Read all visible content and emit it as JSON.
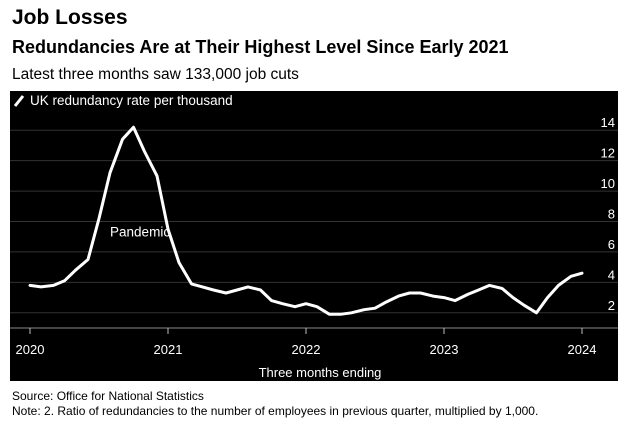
{
  "header": {
    "kicker": "Job Losses",
    "headline": "Redundancies Are at Their Highest Level Since Early 2021",
    "subhead": "Latest three months saw 133,000 job cuts"
  },
  "chart_data": {
    "type": "line",
    "title": "Redundancies Are at Their Highest Level Since Early 2021",
    "xlabel": "Three months ending",
    "ylabel": "",
    "ylim": [
      1,
      15
    ],
    "xlim": [
      2020.0,
      2024.2
    ],
    "y_ticks": [
      2,
      4,
      6,
      8,
      10,
      12,
      14
    ],
    "y_tick_labels": [
      "2",
      "4",
      "6",
      "8",
      "10",
      "12",
      "14"
    ],
    "x_ticks": [
      2020,
      2021,
      2022,
      2023,
      2024
    ],
    "x_tick_labels": [
      "2020",
      "2021",
      "2022",
      "2023",
      "2024"
    ],
    "legend": "UK redundancy rate per thousand",
    "annotation": {
      "text": "Pandemic",
      "x": 2020.58,
      "y": 7.0
    },
    "grid": true,
    "colors": {
      "background": "#000000",
      "line": "#ffffff",
      "grid": "#333333",
      "text": "#ffffff"
    },
    "series": [
      {
        "name": "UK redundancy rate per thousand",
        "x": [
          2020.0,
          2020.08,
          2020.17,
          2020.25,
          2020.33,
          2020.42,
          2020.5,
          2020.58,
          2020.67,
          2020.75,
          2020.83,
          2020.92,
          2021.0,
          2021.08,
          2021.17,
          2021.25,
          2021.33,
          2021.42,
          2021.5,
          2021.58,
          2021.67,
          2021.75,
          2021.83,
          2021.92,
          2022.0,
          2022.08,
          2022.17,
          2022.25,
          2022.33,
          2022.42,
          2022.5,
          2022.58,
          2022.67,
          2022.75,
          2022.83,
          2022.92,
          2023.0,
          2023.08,
          2023.17,
          2023.25,
          2023.33,
          2023.42,
          2023.5,
          2023.58,
          2023.67,
          2023.75,
          2023.83,
          2023.92,
          2024.0
        ],
        "y": [
          3.8,
          3.7,
          3.8,
          4.1,
          4.8,
          5.5,
          8.2,
          11.2,
          13.4,
          14.2,
          12.6,
          11.0,
          7.5,
          5.3,
          3.9,
          3.7,
          3.5,
          3.3,
          3.5,
          3.7,
          3.5,
          2.8,
          2.6,
          2.4,
          2.6,
          2.4,
          1.9,
          1.9,
          2.0,
          2.2,
          2.3,
          2.7,
          3.1,
          3.3,
          3.3,
          3.1,
          3.0,
          2.8,
          3.2,
          3.5,
          3.8,
          3.6,
          3.0,
          2.5,
          2.0,
          3.0,
          3.8,
          4.4,
          4.6
        ]
      }
    ]
  },
  "footer": {
    "source": "Source: Office for National Statistics",
    "note": "Note: 2. Ratio of redundancies to the number of employees in previous quarter, multiplied by 1,000."
  }
}
